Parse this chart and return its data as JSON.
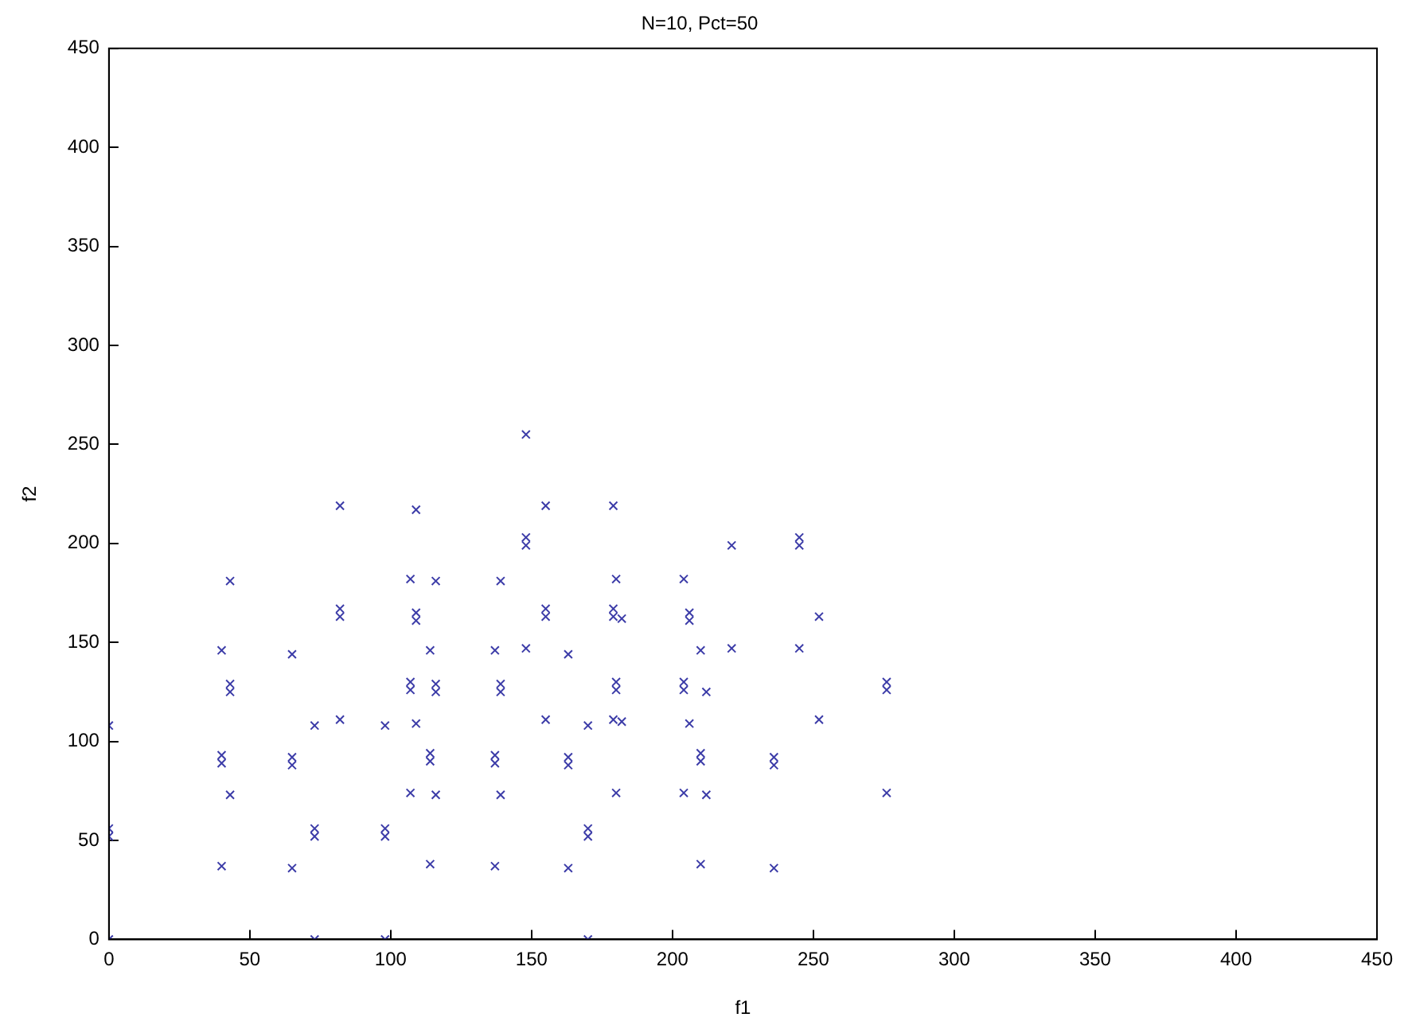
{
  "chart_data": {
    "type": "scatter",
    "title": "N=10, Pct=50",
    "xlabel": "f1",
    "ylabel": "f2",
    "marker": "cross",
    "grid": false,
    "legend": false,
    "xlim": [
      0,
      450
    ],
    "xticks": [
      0,
      50,
      100,
      150,
      200,
      250,
      300,
      350,
      400,
      450
    ],
    "ylim": [
      0,
      450
    ],
    "yticks": [
      0,
      50,
      100,
      150,
      200,
      250,
      300,
      350,
      400,
      450
    ],
    "series": [
      {
        "color": "#3c3ca8",
        "x": [
          0,
          0,
          0,
          0,
          40,
          40,
          40,
          40,
          43,
          43,
          43,
          43,
          65,
          65,
          65,
          65,
          73,
          73,
          73,
          73,
          82,
          82,
          82,
          82,
          98,
          98,
          98,
          98,
          107,
          107,
          107,
          107,
          109,
          109,
          109,
          109,
          114,
          114,
          114,
          114,
          116,
          116,
          116,
          116,
          137,
          137,
          137,
          137,
          139,
          139,
          139,
          139,
          148,
          148,
          148,
          148,
          155,
          155,
          155,
          155,
          163,
          163,
          163,
          163,
          170,
          170,
          170,
          170,
          179,
          179,
          179,
          179,
          180,
          180,
          180,
          180,
          182,
          182,
          204,
          204,
          204,
          204,
          206,
          206,
          206,
          210,
          210,
          210,
          210,
          212,
          212,
          221,
          221,
          236,
          236,
          236,
          245,
          245,
          245,
          252,
          252,
          276,
          276,
          276
        ],
        "values": [
          108,
          56,
          52,
          0,
          146,
          93,
          89,
          37,
          181,
          129,
          125,
          73,
          144,
          92,
          88,
          36,
          108,
          56,
          52,
          0,
          219,
          167,
          163,
          111,
          108,
          56,
          52,
          0,
          182,
          130,
          126,
          74,
          217,
          165,
          161,
          109,
          146,
          94,
          90,
          38,
          181,
          129,
          125,
          73,
          146,
          93,
          89,
          37,
          181,
          129,
          125,
          73,
          255,
          203,
          199,
          147,
          219,
          167,
          163,
          111,
          144,
          92,
          88,
          36,
          108,
          56,
          52,
          0,
          219,
          167,
          163,
          111,
          182,
          130,
          126,
          74,
          162,
          110,
          182,
          130,
          126,
          74,
          165,
          161,
          109,
          146,
          94,
          90,
          38,
          125,
          73,
          199,
          147,
          92,
          88,
          36,
          203,
          199,
          147,
          163,
          111,
          130,
          126,
          74
        ]
      }
    ]
  }
}
